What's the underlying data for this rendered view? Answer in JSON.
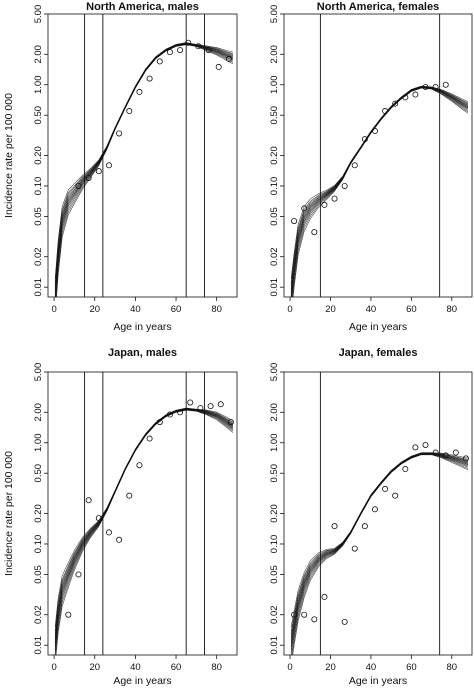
{
  "figure": {
    "y_axis_label": "Incidence rate per 100 000",
    "x_axis_label": "Age in years"
  },
  "chart_data": [
    {
      "type": "line",
      "title": "North America, males",
      "xlabel": "Age in years",
      "ylabel": "Incidence rate per 100 000",
      "xlim": [
        -3,
        90
      ],
      "ylim": [
        0.008,
        5.0
      ],
      "y_scale": "log",
      "x_ticks": [
        0,
        20,
        40,
        60,
        80
      ],
      "y_ticks": [
        0.01,
        0.02,
        0.05,
        0.1,
        0.2,
        0.5,
        1.0,
        2.0,
        5.0
      ],
      "y_tick_labels": [
        "0.01",
        "0.02",
        "0.05",
        "0.10",
        "0.20",
        "0.50",
        "1.00",
        "2.00",
        "5.00"
      ],
      "vertical_lines": [
        15,
        24,
        65,
        74
      ],
      "fit_curve": {
        "x": [
          0.5,
          2,
          4,
          7,
          10,
          14,
          18,
          22,
          26,
          30,
          35,
          40,
          45,
          50,
          55,
          60,
          65,
          70,
          75,
          80,
          85,
          88
        ],
        "y": [
          0.008,
          0.02,
          0.045,
          0.07,
          0.085,
          0.11,
          0.135,
          0.17,
          0.24,
          0.37,
          0.6,
          0.95,
          1.4,
          1.85,
          2.2,
          2.45,
          2.55,
          2.45,
          2.3,
          2.15,
          1.95,
          1.85
        ]
      },
      "observed": {
        "x": [
          12,
          17,
          22,
          27,
          32,
          37,
          42,
          47,
          52,
          57,
          62,
          66,
          71,
          76,
          81,
          86
        ],
        "y": [
          0.1,
          0.12,
          0.14,
          0.16,
          0.33,
          0.55,
          0.85,
          1.15,
          1.7,
          2.1,
          2.2,
          2.6,
          2.4,
          2.2,
          1.5,
          1.8
        ]
      }
    },
    {
      "type": "line",
      "title": "North America, females",
      "xlabel": "Age in years",
      "ylabel": "Incidence rate per 100 000",
      "xlim": [
        -3,
        90
      ],
      "ylim": [
        0.008,
        5.0
      ],
      "y_scale": "log",
      "x_ticks": [
        0,
        20,
        40,
        60,
        80
      ],
      "y_ticks": [
        0.01,
        0.02,
        0.05,
        0.1,
        0.2,
        0.5,
        1.0,
        2.0,
        5.0
      ],
      "y_tick_labels": [
        "0.01",
        "0.02",
        "0.05",
        "0.10",
        "0.20",
        "0.50",
        "1.00",
        "2.00",
        "5.00"
      ],
      "vertical_lines": [
        15,
        74
      ],
      "fit_curve": {
        "x": [
          0.5,
          2,
          4,
          7,
          10,
          14,
          18,
          22,
          26,
          30,
          35,
          40,
          45,
          50,
          55,
          60,
          65,
          70,
          75,
          80,
          85,
          88
        ],
        "y": [
          0.008,
          0.015,
          0.03,
          0.048,
          0.06,
          0.072,
          0.082,
          0.095,
          0.12,
          0.17,
          0.24,
          0.34,
          0.46,
          0.6,
          0.74,
          0.88,
          0.95,
          0.93,
          0.85,
          0.75,
          0.65,
          0.6
        ]
      },
      "observed": {
        "x": [
          2,
          7,
          12,
          17,
          22,
          27,
          32,
          37,
          42,
          47,
          52,
          57,
          62,
          67,
          72,
          77
        ],
        "y": [
          0.045,
          0.06,
          0.035,
          0.065,
          0.075,
          0.1,
          0.16,
          0.29,
          0.35,
          0.55,
          0.65,
          0.75,
          0.8,
          0.95,
          0.95,
          1.0
        ]
      }
    },
    {
      "type": "line",
      "title": "Japan, males",
      "xlabel": "Age in years",
      "ylabel": "Incidence rate per 100 000",
      "xlim": [
        -3,
        90
      ],
      "ylim": [
        0.008,
        5.0
      ],
      "y_scale": "log",
      "x_ticks": [
        0,
        20,
        40,
        60,
        80
      ],
      "y_ticks": [
        0.01,
        0.02,
        0.05,
        0.1,
        0.2,
        0.5,
        1.0,
        2.0,
        5.0
      ],
      "y_tick_labels": [
        "0.01",
        "0.02",
        "0.05",
        "0.10",
        "0.20",
        "0.50",
        "1.00",
        "2.00",
        "5.00"
      ],
      "vertical_lines": [
        15,
        24,
        65,
        74
      ],
      "fit_curve": {
        "x": [
          0.5,
          2,
          4,
          7,
          10,
          14,
          18,
          22,
          26,
          30,
          35,
          40,
          45,
          50,
          55,
          60,
          65,
          70,
          75,
          80,
          85,
          88
        ],
        "y": [
          0.01,
          0.02,
          0.035,
          0.05,
          0.07,
          0.1,
          0.13,
          0.16,
          0.22,
          0.33,
          0.55,
          0.85,
          1.2,
          1.55,
          1.85,
          2.05,
          2.15,
          2.1,
          2.0,
          1.85,
          1.6,
          1.45
        ]
      },
      "observed": {
        "x": [
          7,
          12,
          17,
          22,
          27,
          32,
          37,
          42,
          47,
          52,
          57,
          62,
          67,
          72,
          77,
          82,
          87
        ],
        "y": [
          0.02,
          0.05,
          0.27,
          0.18,
          0.13,
          0.11,
          0.3,
          0.6,
          1.1,
          1.6,
          1.9,
          2.0,
          2.5,
          2.2,
          2.3,
          2.4,
          1.6
        ]
      }
    },
    {
      "type": "line",
      "title": "Japan, females",
      "xlabel": "Age in years",
      "ylabel": "Incidence rate per 100 000",
      "xlim": [
        -3,
        90
      ],
      "ylim": [
        0.008,
        5.0
      ],
      "y_scale": "log",
      "x_ticks": [
        0,
        20,
        40,
        60,
        80
      ],
      "y_ticks": [
        0.01,
        0.02,
        0.05,
        0.1,
        0.2,
        0.5,
        1.0,
        2.0,
        5.0
      ],
      "y_tick_labels": [
        "0.01",
        "0.02",
        "0.05",
        "0.10",
        "0.20",
        "0.50",
        "1.00",
        "2.00",
        "5.00"
      ],
      "vertical_lines": [
        15,
        74
      ],
      "fit_curve": {
        "x": [
          0.5,
          2,
          4,
          7,
          10,
          14,
          18,
          22,
          26,
          30,
          35,
          40,
          45,
          50,
          55,
          60,
          65,
          70,
          75,
          80,
          85,
          88
        ],
        "y": [
          0.01,
          0.015,
          0.025,
          0.04,
          0.055,
          0.07,
          0.08,
          0.085,
          0.1,
          0.13,
          0.2,
          0.3,
          0.4,
          0.52,
          0.63,
          0.72,
          0.78,
          0.78,
          0.75,
          0.7,
          0.65,
          0.62
        ]
      },
      "observed": {
        "x": [
          2,
          7,
          12,
          17,
          22,
          27,
          32,
          37,
          42,
          47,
          52,
          57,
          62,
          67,
          72,
          77,
          82,
          87
        ],
        "y": [
          0.02,
          0.02,
          0.018,
          0.03,
          0.15,
          0.017,
          0.09,
          0.15,
          0.22,
          0.35,
          0.3,
          0.55,
          0.9,
          0.95,
          0.8,
          0.75,
          0.8,
          0.7
        ]
      }
    }
  ]
}
